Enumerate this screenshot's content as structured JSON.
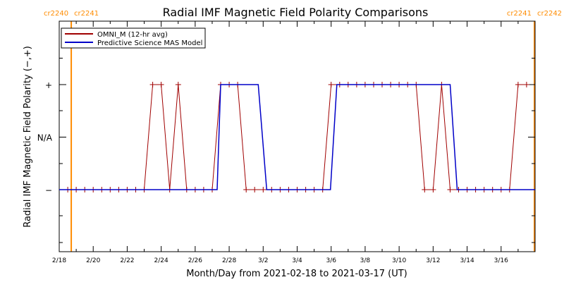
{
  "chart_data": {
    "type": "line",
    "title": "Radial IMF Magnetic Field Polarity Comparisons",
    "xlabel": "Month/Day from 2021-02-18 to 2021-03-17 (UT)",
    "ylabel": "Radial IMF Magnetic Field Polarity (−,+)",
    "xlim": [
      "2021-02-18",
      "2021-03-17"
    ],
    "x_ticks": [
      "2021-02-18",
      "2021-02-20",
      "2021-02-22",
      "2021-02-24",
      "2021-02-26",
      "2021-02-28",
      "2021-03-02",
      "2021-03-04",
      "2021-03-06",
      "2021-03-08",
      "2021-03-10",
      "2021-03-12",
      "2021-03-14",
      "2021-03-16"
    ],
    "x_tick_labels": [
      "2/18",
      "2/20",
      "2/22",
      "2/24",
      "2/26",
      "2/28",
      "3/2",
      "3/4",
      "3/6",
      "3/8",
      "3/10",
      "3/12",
      "3/14",
      "3/16"
    ],
    "y_categories": [
      "−",
      "N/A",
      "+"
    ],
    "grid": false,
    "legend_position": "top-left",
    "carrington_markers": [
      {
        "left": "cr2240",
        "right": "cr2241",
        "date": "2021-02-18T17:00"
      },
      {
        "left": "cr2241",
        "right": "cr2242",
        "date": "2021-03-17T23:00"
      }
    ],
    "colors": {
      "omni": "#a00000",
      "mas": "#0000c8",
      "marker": "#ff8c00"
    },
    "series": [
      {
        "name": "OMNI_M (12-hr avg)",
        "style": "line-with-plus-markers",
        "points": [
          [
            "2021-02-18T12:00",
            "−"
          ],
          [
            "2021-02-19T00:00",
            "−"
          ],
          [
            "2021-02-19T12:00",
            "−"
          ],
          [
            "2021-02-20T00:00",
            "−"
          ],
          [
            "2021-02-20T12:00",
            "−"
          ],
          [
            "2021-02-21T00:00",
            "−"
          ],
          [
            "2021-02-21T12:00",
            "−"
          ],
          [
            "2021-02-22T00:00",
            "−"
          ],
          [
            "2021-02-22T12:00",
            "−"
          ],
          [
            "2021-02-23T00:00",
            "−"
          ],
          [
            "2021-02-23T12:00",
            "+"
          ],
          [
            "2021-02-24T00:00",
            "+"
          ],
          [
            "2021-02-24T12:00",
            "−"
          ],
          [
            "2021-02-25T00:00",
            "+"
          ],
          [
            "2021-02-25T12:00",
            "−"
          ],
          [
            "2021-02-26T00:00",
            "−"
          ],
          [
            "2021-02-26T12:00",
            "−"
          ],
          [
            "2021-02-27T00:00",
            "−"
          ],
          [
            "2021-02-27T12:00",
            "+"
          ],
          [
            "2021-02-28T00:00",
            "+"
          ],
          [
            "2021-02-28T12:00",
            "+"
          ],
          [
            "2021-03-01T00:00",
            "−"
          ],
          [
            "2021-03-01T12:00",
            "−"
          ],
          [
            "2021-03-02T00:00",
            "−"
          ],
          [
            "2021-03-02T12:00",
            "−"
          ],
          [
            "2021-03-03T00:00",
            "−"
          ],
          [
            "2021-03-03T12:00",
            "−"
          ],
          [
            "2021-03-04T00:00",
            "−"
          ],
          [
            "2021-03-04T12:00",
            "−"
          ],
          [
            "2021-03-05T00:00",
            "−"
          ],
          [
            "2021-03-05T12:00",
            "−"
          ],
          [
            "2021-03-06T00:00",
            "+"
          ],
          [
            "2021-03-06T12:00",
            "+"
          ],
          [
            "2021-03-07T00:00",
            "+"
          ],
          [
            "2021-03-07T12:00",
            "+"
          ],
          [
            "2021-03-08T00:00",
            "+"
          ],
          [
            "2021-03-08T12:00",
            "+"
          ],
          [
            "2021-03-09T00:00",
            "+"
          ],
          [
            "2021-03-09T12:00",
            "+"
          ],
          [
            "2021-03-10T00:00",
            "+"
          ],
          [
            "2021-03-10T12:00",
            "+"
          ],
          [
            "2021-03-11T00:00",
            "+"
          ],
          [
            "2021-03-11T12:00",
            "−"
          ],
          [
            "2021-03-12T00:00",
            "−"
          ],
          [
            "2021-03-12T12:00",
            "+"
          ],
          [
            "2021-03-13T00:00",
            "−"
          ],
          [
            "2021-03-13T12:00",
            "−"
          ],
          [
            "2021-03-14T00:00",
            "−"
          ],
          [
            "2021-03-14T12:00",
            "−"
          ],
          [
            "2021-03-15T00:00",
            "−"
          ],
          [
            "2021-03-15T12:00",
            "−"
          ],
          [
            "2021-03-16T00:00",
            "−"
          ],
          [
            "2021-03-16T12:00",
            "−"
          ],
          [
            "2021-03-17T00:00",
            "+"
          ],
          [
            "2021-03-17T12:00",
            "+"
          ]
        ]
      },
      {
        "name": "Predictive Science MAS Model",
        "style": "line",
        "points": [
          [
            "2021-02-18T00:00",
            "−"
          ],
          [
            "2021-02-27T07:00",
            "−"
          ],
          [
            "2021-02-27T12:00",
            "+"
          ],
          [
            "2021-03-01T17:00",
            "+"
          ],
          [
            "2021-03-02T05:00",
            "−"
          ],
          [
            "2021-03-05T23:00",
            "−"
          ],
          [
            "2021-03-06T08:00",
            "+"
          ],
          [
            "2021-03-13T00:00",
            "+"
          ],
          [
            "2021-03-13T10:00",
            "−"
          ],
          [
            "2021-03-17T23:59",
            "−"
          ]
        ]
      }
    ]
  }
}
